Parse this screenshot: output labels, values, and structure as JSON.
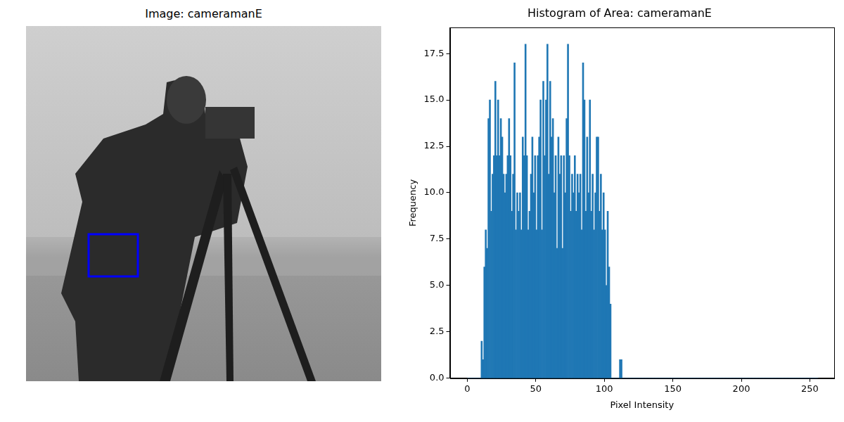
{
  "image_panel": {
    "title": "Image: cameramanE"
  },
  "chart_data": {
    "type": "histogram",
    "title": "Histogram of Area: cameramanE",
    "x_label": "Pixel Intensity",
    "y_label": "Frequency",
    "color": "#1f77b4",
    "grid": false,
    "bins": [
      0,
      1,
      2,
      3,
      4,
      5,
      6,
      7,
      8,
      9,
      10,
      11,
      12,
      13,
      14,
      15,
      16,
      17,
      18,
      19,
      20,
      21,
      22,
      23,
      24,
      25,
      26,
      27,
      28,
      29,
      30,
      31,
      32,
      33,
      34,
      35,
      36,
      37,
      38,
      39,
      40,
      41,
      42,
      43,
      44,
      45,
      46,
      47,
      48,
      49,
      50,
      51,
      52,
      53,
      54,
      55,
      56,
      57,
      58,
      59,
      60,
      61,
      62,
      63,
      64,
      65,
      66,
      67,
      68,
      69,
      70,
      71,
      72,
      73,
      74,
      75,
      76,
      77,
      78,
      79,
      80,
      81,
      82,
      83,
      84,
      85,
      86,
      87,
      88,
      89,
      90,
      91,
      92,
      93,
      94,
      95,
      96,
      97,
      98,
      99,
      100,
      101,
      102,
      103,
      104,
      105,
      106,
      107,
      108,
      109,
      110,
      111,
      112,
      113,
      114,
      115,
      116,
      117,
      118,
      119,
      120,
      121,
      122,
      123,
      124,
      125,
      126,
      127,
      128,
      129,
      130,
      131,
      132,
      133,
      134,
      135,
      136,
      137,
      138,
      139,
      140,
      141,
      142,
      143,
      144,
      145,
      146,
      147,
      148,
      149,
      150,
      151,
      152,
      153,
      154,
      155,
      156,
      157,
      158,
      159,
      160,
      161,
      162,
      163,
      164,
      165,
      166,
      167,
      168,
      169,
      170,
      171,
      172,
      173,
      174,
      175,
      176,
      177,
      178,
      179,
      180,
      181,
      182,
      183,
      184,
      185,
      186,
      187,
      188,
      189,
      190,
      191,
      192,
      193,
      194,
      195,
      196,
      197,
      198,
      199,
      200,
      201,
      202,
      203,
      204,
      205,
      206,
      207,
      208,
      209,
      210,
      211,
      212,
      213,
      214,
      215,
      216,
      217,
      218,
      219,
      220,
      221,
      222,
      223,
      224,
      225,
      226,
      227,
      228,
      229,
      230,
      231,
      232,
      233,
      234,
      235,
      236,
      237,
      238,
      239,
      240,
      241,
      242,
      243,
      244,
      245,
      246,
      247,
      248,
      249,
      250,
      251,
      252,
      253,
      254,
      255,
      256
    ],
    "counts": [
      0,
      0,
      0,
      0,
      0,
      0,
      0,
      0,
      0,
      0,
      2,
      1,
      6,
      8,
      7,
      14,
      15,
      9,
      11,
      12,
      16,
      12,
      15,
      12,
      14,
      13,
      11,
      10,
      11,
      12,
      14,
      12,
      9,
      11,
      17,
      8,
      10,
      9,
      10,
      8,
      13,
      12,
      18,
      12,
      8,
      9,
      11,
      13,
      10,
      12,
      8,
      12,
      13,
      15,
      8,
      16,
      12,
      15,
      18,
      11,
      16,
      13,
      14,
      10,
      12,
      7,
      13,
      11,
      12,
      7,
      12,
      10,
      14,
      18,
      12,
      9,
      11,
      10,
      12,
      9,
      11,
      10,
      11,
      8,
      17,
      15,
      9,
      13,
      10,
      15,
      9,
      11,
      8,
      10,
      13,
      13,
      9,
      11,
      8,
      10,
      8,
      5,
      9,
      6,
      4,
      0,
      0,
      0,
      0,
      0,
      0,
      1,
      1,
      0,
      0,
      0,
      0,
      0,
      0,
      0,
      0,
      0,
      0,
      0,
      0,
      0,
      0,
      0,
      0,
      0,
      0,
      0,
      0,
      0,
      0,
      0,
      0,
      0,
      0,
      0,
      0,
      0,
      0,
      0,
      0,
      0,
      0,
      0,
      0,
      0,
      0,
      0,
      0,
      0,
      0,
      0,
      0,
      0,
      0,
      0,
      0,
      0,
      0,
      0,
      0,
      0,
      0,
      0,
      0,
      0,
      0,
      0,
      0,
      0,
      0,
      0,
      0,
      0,
      0,
      0,
      0,
      0,
      0,
      0,
      0,
      0,
      0,
      0,
      0,
      0,
      0,
      0,
      0,
      0,
      0,
      0,
      0,
      0,
      0,
      0,
      0,
      0,
      0,
      0,
      0,
      0,
      0,
      0,
      0,
      0,
      0,
      0,
      0,
      0,
      0,
      0,
      0,
      0,
      0,
      0,
      0,
      0,
      0,
      0,
      0,
      0,
      0,
      0,
      0,
      0,
      0,
      0,
      0,
      0,
      0,
      0,
      0,
      0,
      0,
      0,
      0,
      0,
      0,
      0,
      0,
      0,
      0,
      0,
      0,
      0,
      0,
      0,
      0,
      0,
      0,
      0
    ],
    "xlim": [
      -12.75,
      267.75
    ],
    "xticks": [
      0,
      50,
      100,
      150,
      200,
      250
    ],
    "ylim": [
      0,
      18.9
    ],
    "yticks": [
      {
        "value": 0,
        "label": "0.0"
      },
      2.5,
      {
        "value": 5,
        "label": "5.0"
      },
      7.5,
      {
        "value": 10,
        "label": "10.0"
      },
      12.5,
      {
        "value": 15,
        "label": "15.0"
      },
      17.5
    ]
  }
}
